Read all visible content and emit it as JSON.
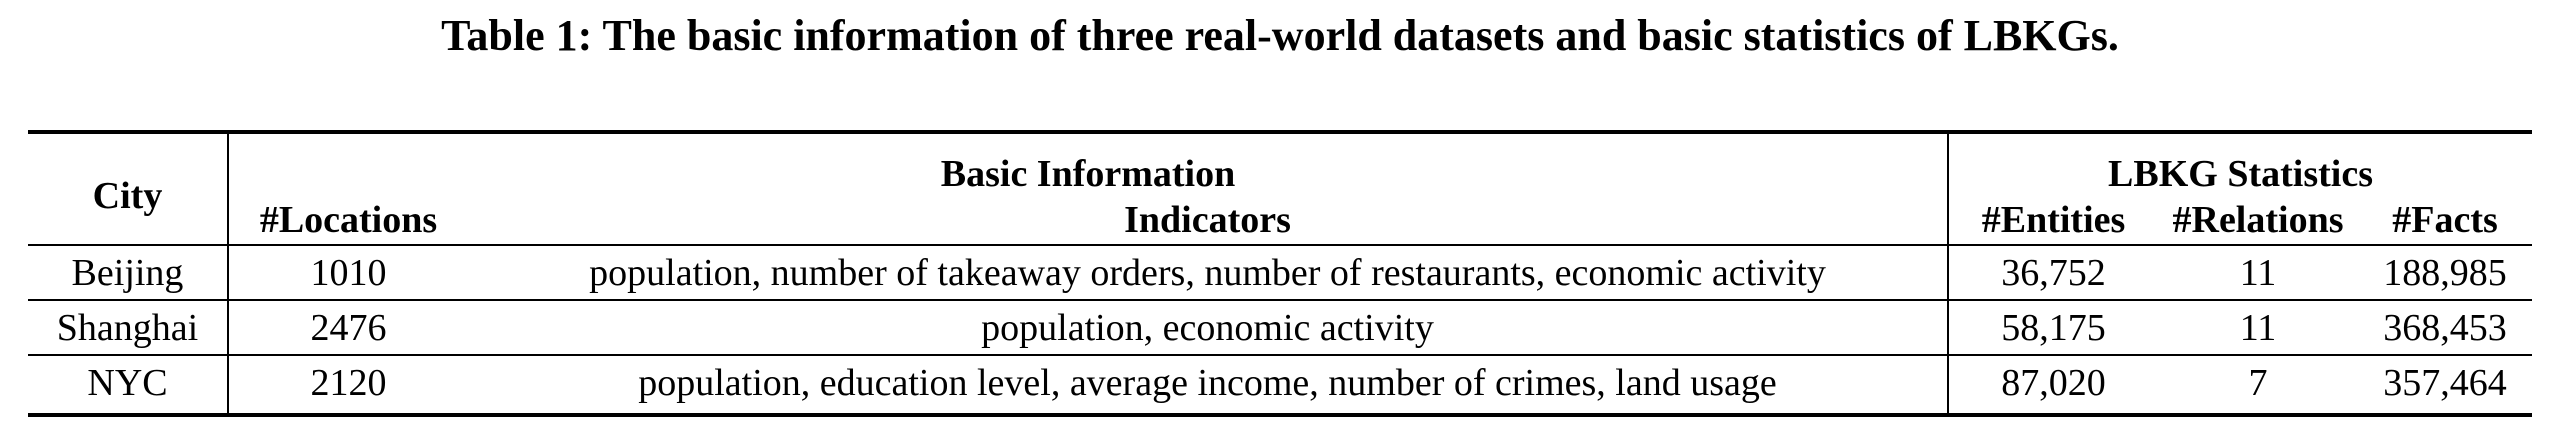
{
  "caption": "Table 1: The basic information of three real-world datasets and basic statistics of LBKGs.",
  "table": {
    "header": {
      "city": "City",
      "basic_information": "Basic Information",
      "lbkg_statistics": "LBKG Statistics",
      "locations": "#Locations",
      "indicators": "Indicators",
      "entities": "#Entities",
      "relations": "#Relations",
      "facts": "#Facts"
    },
    "rows": [
      {
        "city": "Beijing",
        "locations": "1010",
        "indicators": "population, number of takeaway orders, number of restaurants, economic activity",
        "entities": "36,752",
        "relations": "11",
        "facts": "188,985"
      },
      {
        "city": "Shanghai",
        "locations": "2476",
        "indicators": "population, economic activity",
        "entities": "58,175",
        "relations": "11",
        "facts": "368,453"
      },
      {
        "city": "NYC",
        "locations": "2120",
        "indicators": "population, education level, average income, number of crimes, land usage",
        "entities": "87,020",
        "relations": "7",
        "facts": "357,464"
      }
    ]
  }
}
